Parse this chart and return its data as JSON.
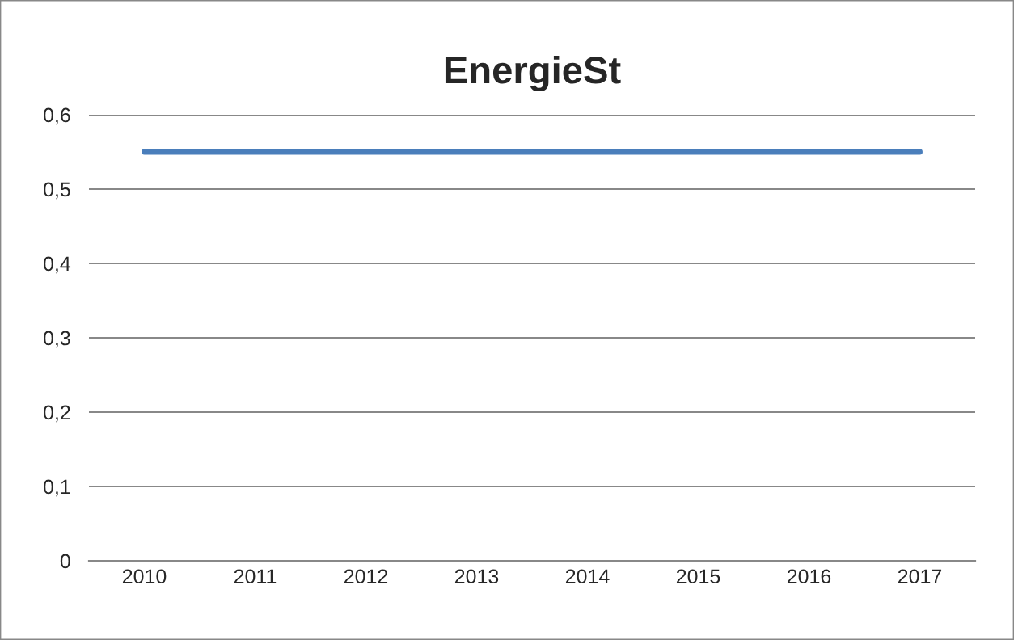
{
  "chart_data": {
    "type": "line",
    "title": "EnergieSt",
    "categories": [
      "2010",
      "2011",
      "2012",
      "2013",
      "2014",
      "2015",
      "2016",
      "2017"
    ],
    "series": [
      {
        "color": "#4a7ebb",
        "values": [
          0.55,
          0.55,
          0.55,
          0.55,
          0.55,
          0.55,
          0.55,
          0.55
        ]
      }
    ],
    "ylim": [
      0,
      0.6
    ],
    "yticks": [
      {
        "value": 0,
        "label": "0"
      },
      {
        "value": 0.1,
        "label": "0,1"
      },
      {
        "value": 0.2,
        "label": "0,2"
      },
      {
        "value": 0.3,
        "label": "0,3"
      },
      {
        "value": 0.4,
        "label": "0,4"
      },
      {
        "value": 0.5,
        "label": "0,5"
      },
      {
        "value": 0.6,
        "label": "0,6"
      }
    ],
    "grid": "y",
    "marker": "none",
    "line_style": "solid"
  }
}
